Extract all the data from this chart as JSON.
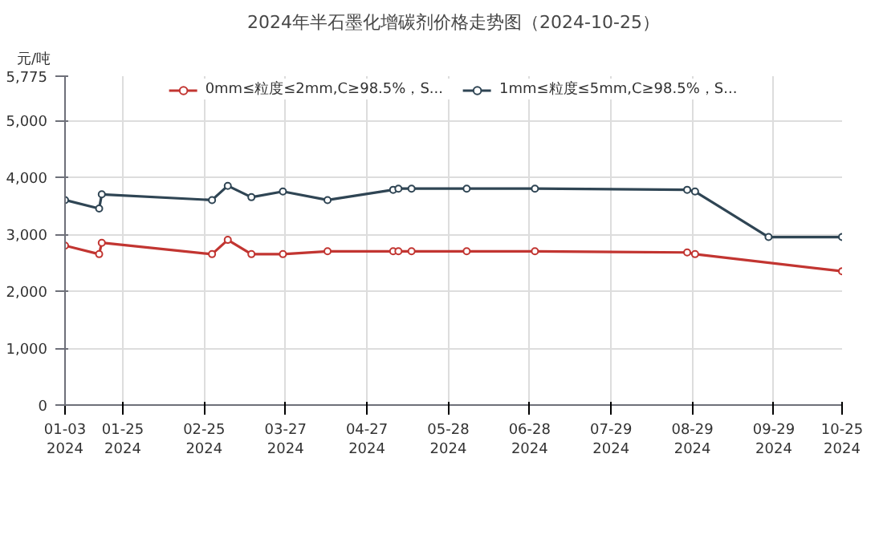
{
  "chart_data": {
    "type": "line",
    "title": "2024年半石墨化增碳剂价格走势图（2024-10-25）",
    "ylabel": "元/吨",
    "series": [
      {
        "name": "0mm≤粒度≤2mm,C≥98.5%，S...",
        "color": "#c23531",
        "x": [
          "2024-01-03",
          "2024-01-16",
          "2024-01-17",
          "2024-02-28",
          "2024-03-05",
          "2024-03-14",
          "2024-03-26",
          "2024-04-12",
          "2024-05-07",
          "2024-05-09",
          "2024-05-14",
          "2024-06-04",
          "2024-06-30",
          "2024-08-27",
          "2024-08-30",
          "2024-10-25"
        ],
        "values": [
          2800,
          2650,
          2850,
          2650,
          2900,
          2650,
          2650,
          2700,
          2700,
          2700,
          2700,
          2700,
          2700,
          2680,
          2650,
          2350
        ]
      },
      {
        "name": "1mm≤粒度≤5mm,C≥98.5%，S...",
        "color": "#2f4554",
        "x": [
          "2024-01-03",
          "2024-01-16",
          "2024-01-17",
          "2024-02-28",
          "2024-03-05",
          "2024-03-14",
          "2024-03-26",
          "2024-04-12",
          "2024-05-07",
          "2024-05-09",
          "2024-05-14",
          "2024-06-04",
          "2024-06-30",
          "2024-08-27",
          "2024-08-30",
          "2024-09-27",
          "2024-10-25"
        ],
        "values": [
          3600,
          3450,
          3700,
          3600,
          3850,
          3650,
          3750,
          3600,
          3780,
          3800,
          3800,
          3800,
          3800,
          3780,
          3750,
          2950,
          2950
        ]
      }
    ],
    "xlim": [
      "2024-01-03",
      "2024-10-25"
    ],
    "xticks": [
      {
        "value": "2024-01-03",
        "label": "01-03\n2024"
      },
      {
        "value": "2024-01-25",
        "label": "01-25\n2024"
      },
      {
        "value": "2024-02-25",
        "label": "02-25\n2024"
      },
      {
        "value": "2024-03-27",
        "label": "03-27\n2024"
      },
      {
        "value": "2024-04-27",
        "label": "04-27\n2024"
      },
      {
        "value": "2024-05-28",
        "label": "05-28\n2024"
      },
      {
        "value": "2024-06-28",
        "label": "06-28\n2024"
      },
      {
        "value": "2024-07-29",
        "label": "07-29\n2024"
      },
      {
        "value": "2024-08-29",
        "label": "08-29\n2024"
      },
      {
        "value": "2024-09-29",
        "label": "09-29\n2024"
      },
      {
        "value": "2024-10-25",
        "label": "10-25\n2024"
      }
    ],
    "ylim": [
      0,
      5775
    ],
    "yticks": [
      0,
      {
        "value": 1000,
        "label": "1,000"
      },
      {
        "value": 2000,
        "label": "2,000"
      },
      {
        "value": 3000,
        "label": "3,000"
      },
      {
        "value": 4000,
        "label": "4,000"
      },
      {
        "value": 5000,
        "label": "5,000"
      },
      {
        "value": 5775,
        "label": "5,775"
      }
    ],
    "grid": true,
    "legend": "top",
    "marker": "circle",
    "line_style": "solid"
  }
}
